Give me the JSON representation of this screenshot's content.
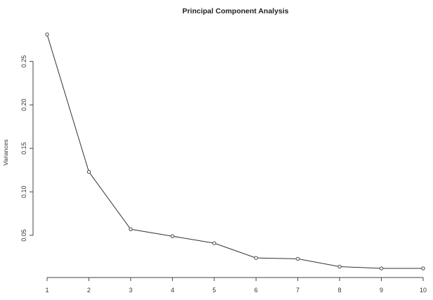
{
  "chart_data": {
    "type": "line",
    "title": "Principal Component Analysis",
    "xlabel": "",
    "ylabel": "Variances",
    "x": [
      1,
      2,
      3,
      4,
      5,
      6,
      7,
      8,
      9,
      10
    ],
    "x_ticks": [
      "1",
      "2",
      "3",
      "4",
      "5",
      "6",
      "7",
      "8",
      "9",
      "10"
    ],
    "y_ticks": [
      0.05,
      0.1,
      0.15,
      0.2,
      0.25
    ],
    "y_tick_labels": [
      "0.05",
      "0.10",
      "0.15",
      "0.20",
      "0.25"
    ],
    "series": [
      {
        "values": [
          0.281,
          0.123,
          0.057,
          0.049,
          0.041,
          0.024,
          0.023,
          0.014,
          0.012,
          0.012
        ]
      }
    ],
    "xlim": [
      1,
      10
    ],
    "ylim": [
      0.012,
      0.281
    ],
    "grid": false,
    "marker": "open-circle",
    "line_color": "#333333"
  }
}
